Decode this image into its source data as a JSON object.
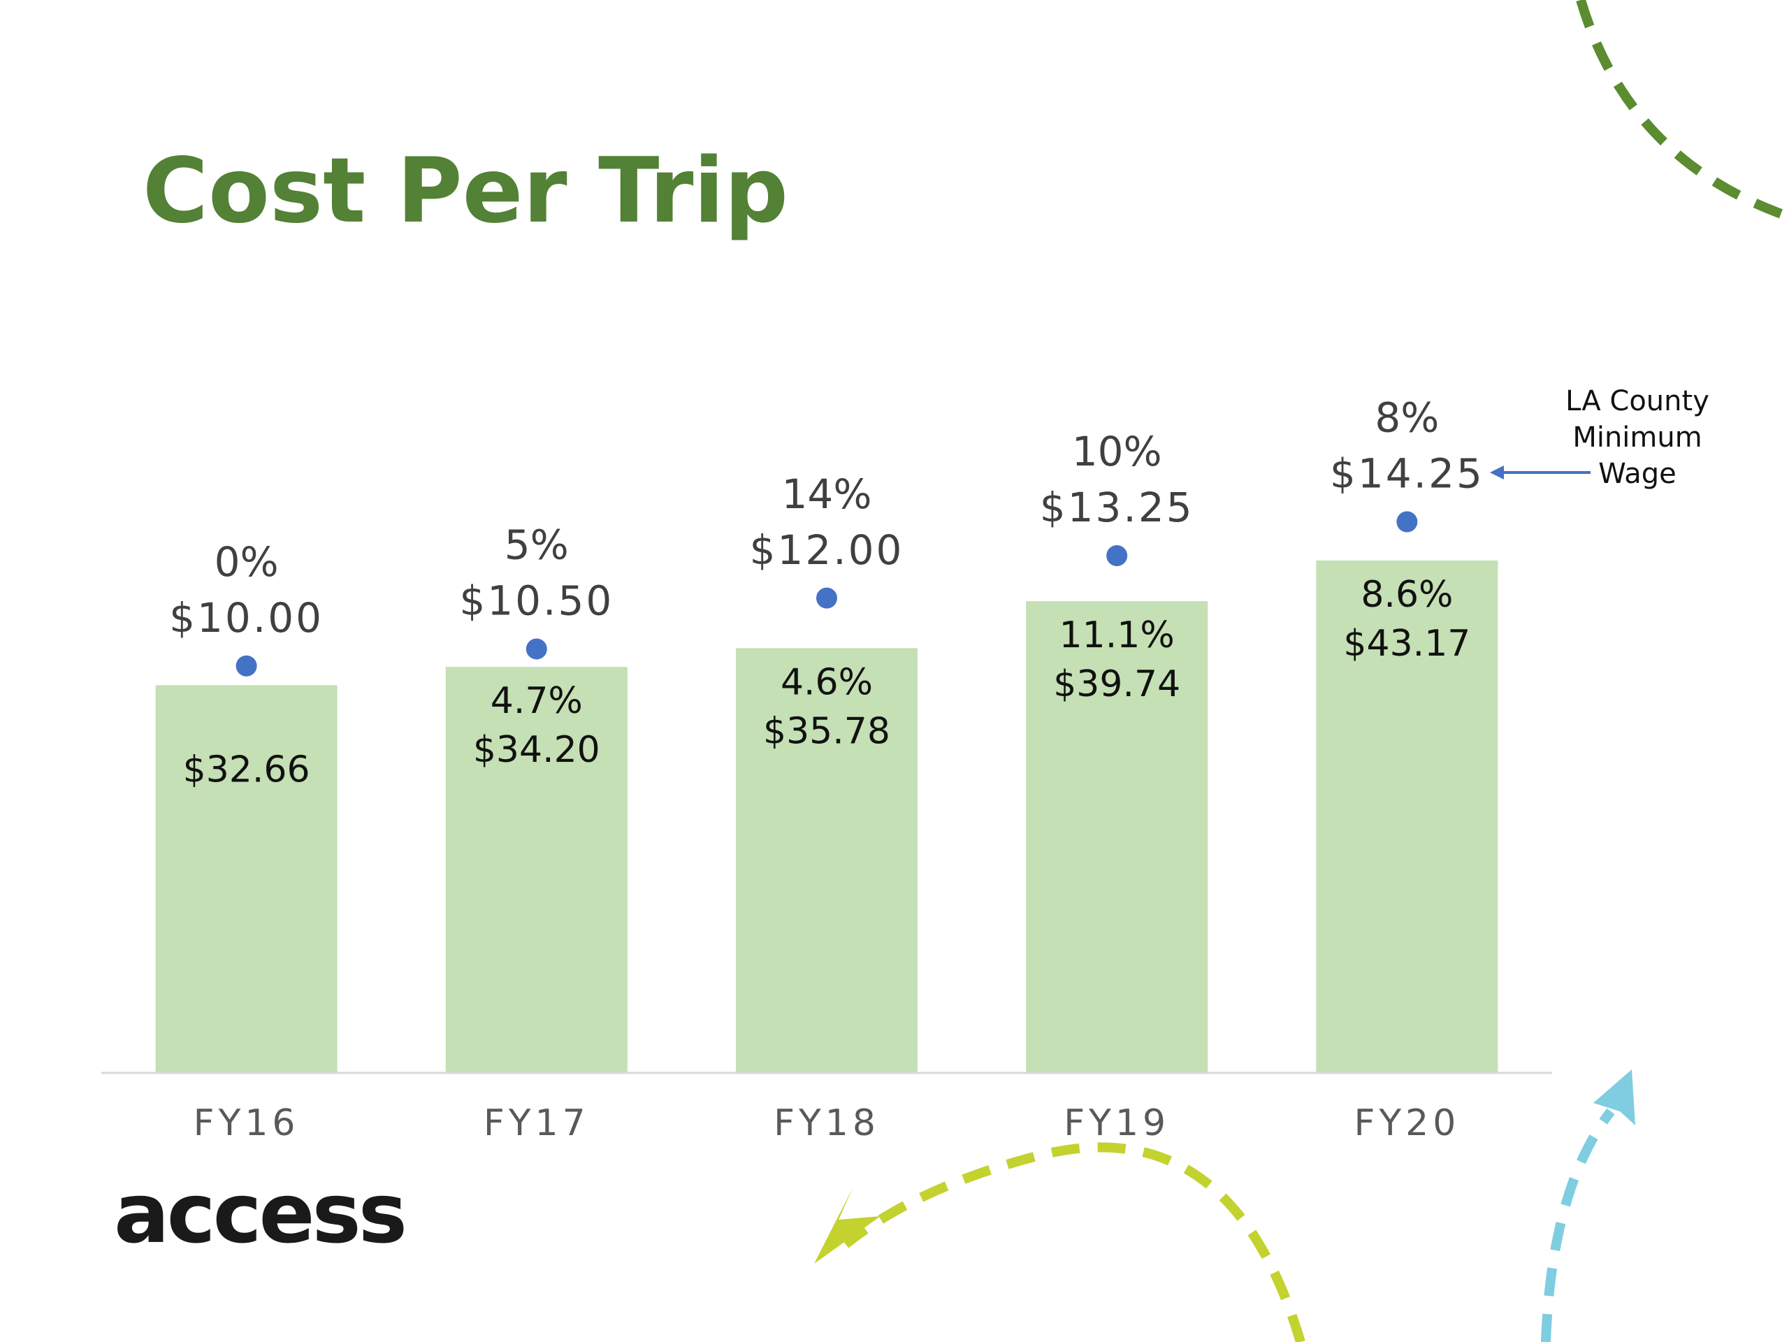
{
  "chart_data": {
    "type": "bar",
    "title": "Cost Per Trip",
    "categories": [
      "FY16",
      "FY17",
      "FY18",
      "FY19",
      "FY20"
    ],
    "series": [
      {
        "type": "bar",
        "color": "#c5e0b4",
        "values": [
          32.66,
          34.2,
          35.78,
          39.74,
          43.17
        ],
        "value_labels": [
          "$32.66",
          "$34.20",
          "$35.78",
          "$39.74",
          "$43.17"
        ],
        "growth_labels": [
          null,
          "4.7%",
          "4.6%",
          "11.1%",
          "8.6%"
        ]
      },
      {
        "type": "scatter",
        "name": "LA County Minimum Wage",
        "axis": "y2",
        "color": "#4472c4",
        "values": [
          10.0,
          10.5,
          12.0,
          13.25,
          14.25
        ],
        "value_labels": [
          "$10.00",
          "$10.50",
          "$12.00",
          "$13.25",
          "$14.25"
        ],
        "growth_labels": [
          "0%",
          "5%",
          "14%",
          "10%",
          "8%"
        ]
      }
    ],
    "ylim": [
      0,
      60
    ],
    "y2lim": [
      -2,
      19
    ],
    "grid": false
  },
  "logo": "access"
}
